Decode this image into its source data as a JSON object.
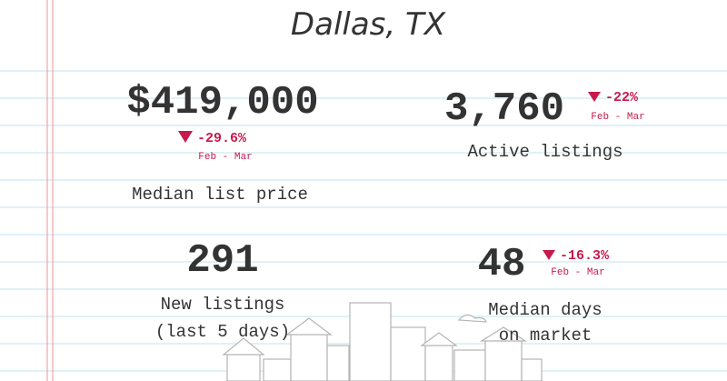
{
  "title": "Dallas, TX",
  "stats": [
    {
      "value": "$419,000",
      "change": "-29.6%",
      "period": "Feb - Mar",
      "label_lines": [
        "Median list price"
      ]
    },
    {
      "value": "3,760",
      "change": "-22%",
      "period": "Feb - Mar",
      "label_lines": [
        "Active listings"
      ]
    },
    {
      "value": "291",
      "label_lines": [
        "New listings",
        "(last 5 days)"
      ]
    },
    {
      "value": "48",
      "change": "-16.3%",
      "period": "Feb - Mar",
      "label_lines": [
        "Median days",
        "on market"
      ]
    }
  ]
}
